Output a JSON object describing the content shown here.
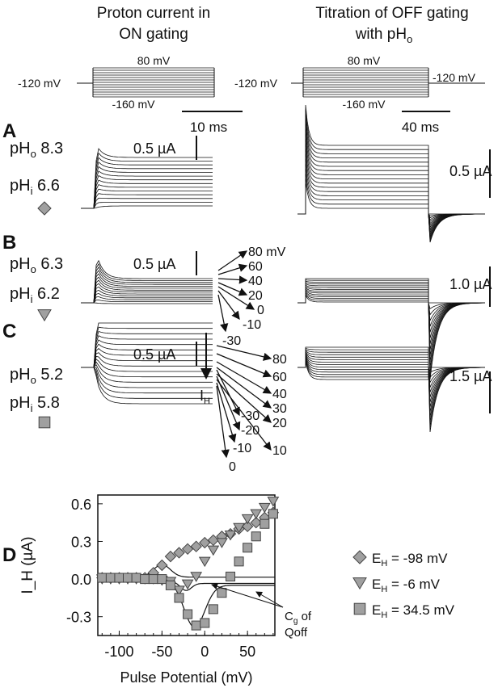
{
  "titles": {
    "left_line1": "Proton current in",
    "left_line2": "ON gating",
    "right_line1": "Titration of OFF gating",
    "right_line2": "with pH",
    "right_line2_sub": "o"
  },
  "protocol_left": {
    "top": "80 mV",
    "hold": "-120 mV",
    "bottom": "-160 mV",
    "scale": "10 ms"
  },
  "protocol_right": {
    "top": "80 mV",
    "hold": "-120 mV",
    "hold_after": "-120 mV",
    "bottom": "-160 mV",
    "scale": "40 ms"
  },
  "panels": [
    {
      "letter": "A",
      "pho": "8.3",
      "phi": "6.6",
      "marker": "diamond",
      "scale_left": "0.5 µA",
      "scale_right": "0.5 µA"
    },
    {
      "letter": "B",
      "pho": "6.3",
      "phi": "6.2",
      "marker": "triangle",
      "scale_left": "0.5 µA",
      "scale_right": "1.0 µA",
      "arrow_labels": [
        "80 mV",
        "60",
        "40",
        "20",
        "0",
        "-10",
        "-30"
      ]
    },
    {
      "letter": "C",
      "pho": "5.2",
      "phi": "5.8",
      "marker": "square",
      "scale_left": "0.5 µA",
      "scale_right": "1.5 µA",
      "arrow_labels": [
        "80",
        "60",
        "40",
        "30",
        "-30",
        "20",
        "-20",
        "10",
        "-10",
        "0"
      ]
    }
  ],
  "ph_labels": {
    "o": "pH",
    "o_sub": "o",
    "i": "pH",
    "i_sub": "i"
  },
  "ih_label": "I",
  "ih_sub": "H",
  "panel_d_letter": "D",
  "chart_data": {
    "type": "scatter",
    "xlabel": "Pulse Potential (mV)",
    "ylabel": "I_H (µA)",
    "xlim": [
      -125,
      82
    ],
    "ylim": [
      -0.45,
      0.67
    ],
    "xticks": [
      -100,
      -50,
      0,
      50
    ],
    "yticks": [
      -0.3,
      0.0,
      0.3,
      0.6
    ],
    "ytick_labels": [
      "-0.3",
      "0.0",
      "0.3",
      "0.6"
    ],
    "grid": false,
    "legend_position": "right",
    "x": [
      -120,
      -110,
      -100,
      -90,
      -80,
      -70,
      -60,
      -50,
      -40,
      -30,
      -20,
      -10,
      0,
      10,
      20,
      30,
      40,
      50,
      60,
      70,
      80
    ],
    "series": [
      {
        "name": "E_H = -98 mV",
        "marker": "diamond",
        "values": [
          0.01,
          0.01,
          0.01,
          0.01,
          0.01,
          0.01,
          0.05,
          0.11,
          0.18,
          0.21,
          0.24,
          0.26,
          0.29,
          0.31,
          0.34,
          0.36,
          0.4,
          0.42,
          0.45,
          0.49,
          0.53
        ]
      },
      {
        "name": "E_H =   -6 mV",
        "marker": "triangle",
        "values": [
          0.0,
          0.0,
          0.0,
          0.0,
          0.0,
          0.0,
          0.0,
          -0.01,
          -0.02,
          -0.09,
          -0.04,
          0.02,
          0.14,
          0.23,
          0.29,
          0.35,
          0.41,
          0.48,
          0.52,
          0.57,
          0.62
        ]
      },
      {
        "name": "E_H = 34.5 mV",
        "marker": "square",
        "values": [
          0.01,
          0.01,
          0.01,
          0.01,
          0.01,
          0.0,
          0.0,
          0.0,
          -0.05,
          -0.15,
          -0.28,
          -0.37,
          -0.35,
          -0.24,
          -0.11,
          0.02,
          0.14,
          0.25,
          0.34,
          0.44,
          0.52
        ]
      }
    ],
    "annotation": {
      "line1": "C",
      "line1_sub": "g",
      "line1_rest": " of",
      "line2": "Qoff"
    }
  },
  "colors": {
    "marker_fill": "#a0a0a0",
    "marker_stroke": "#444444",
    "ink": "#111111"
  }
}
